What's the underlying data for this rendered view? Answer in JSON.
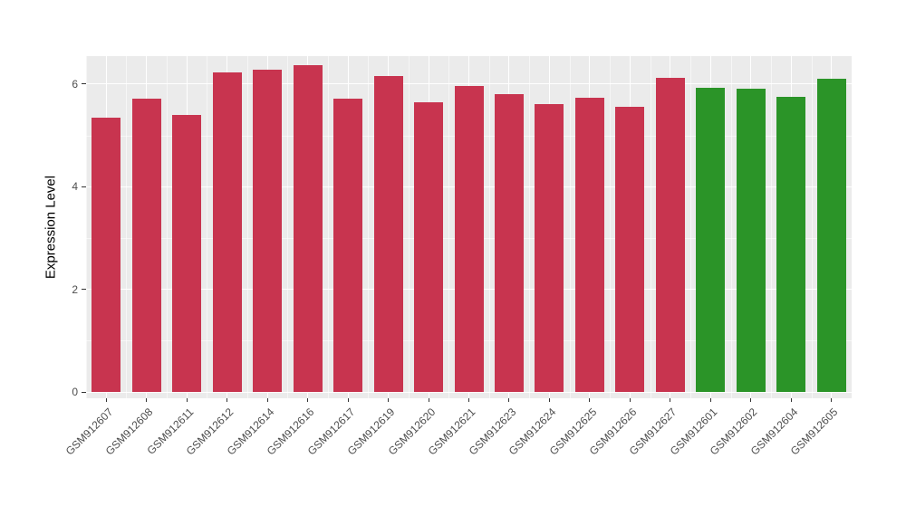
{
  "figure": {
    "background": "#FFFFFF"
  },
  "chart_data": {
    "type": "bar",
    "title": "",
    "xlabel": "",
    "ylabel": "Expression Level",
    "ylim": [
      0,
      6.55
    ],
    "yticks": [
      0,
      2,
      4,
      6
    ],
    "yticks_minor": [
      1,
      3,
      5
    ],
    "grid": "on",
    "legend": "none",
    "panel_background": "#EBEBEB",
    "grid_color": "#FFFFFF",
    "tick_label_color": "#4D4D4D",
    "categories": [
      "GSM912607",
      "GSM912608",
      "GSM912611",
      "GSM912612",
      "GSM912614",
      "GSM912616",
      "GSM912617",
      "GSM912619",
      "GSM912620",
      "GSM912621",
      "GSM912623",
      "GSM912624",
      "GSM912625",
      "GSM912626",
      "GSM912627",
      "GSM912601",
      "GSM912602",
      "GSM912604",
      "GSM912605"
    ],
    "values": [
      5.35,
      5.72,
      5.4,
      6.22,
      6.28,
      6.36,
      5.72,
      6.15,
      5.65,
      5.97,
      5.8,
      5.6,
      5.73,
      5.55,
      6.12,
      5.92,
      5.9,
      5.75,
      6.1
    ],
    "groups": [
      "red",
      "red",
      "red",
      "red",
      "red",
      "red",
      "red",
      "red",
      "red",
      "red",
      "red",
      "red",
      "red",
      "red",
      "red",
      "green",
      "green",
      "green",
      "green"
    ],
    "group_colors": {
      "red": "#C8344F",
      "green": "#2B9428"
    }
  }
}
